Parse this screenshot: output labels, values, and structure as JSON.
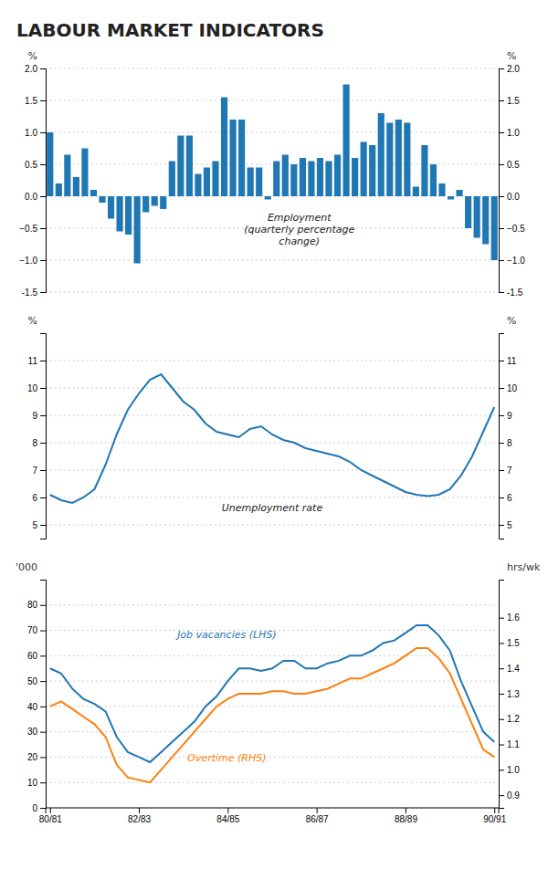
{
  "chart_data": [
    {
      "type": "bar",
      "title": "LABOUR MARKET INDICATORS",
      "categories": [
        null,
        null,
        null,
        null,
        null,
        null,
        null,
        null,
        null,
        null,
        null,
        null,
        null,
        null,
        null,
        null,
        null,
        null,
        null,
        null,
        null,
        null,
        null,
        null,
        null,
        null,
        null,
        null,
        null,
        null,
        null,
        null,
        null,
        null,
        null,
        null,
        null,
        null,
        null,
        null,
        null,
        null,
        null,
        null,
        null,
        null,
        null,
        null,
        null,
        null,
        null,
        null
      ],
      "values": [
        1.0,
        0.2,
        0.65,
        0.3,
        0.75,
        0.1,
        -0.1,
        -0.35,
        -0.55,
        -0.6,
        -1.05,
        -0.25,
        -0.15,
        -0.2,
        0.55,
        0.95,
        0.95,
        0.35,
        0.45,
        0.55,
        1.55,
        1.2,
        1.2,
        0.45,
        0.45,
        -0.05,
        0.55,
        0.65,
        0.5,
        0.6,
        0.55,
        0.6,
        0.55,
        0.65,
        1.75,
        0.6,
        0.85,
        0.8,
        1.3,
        1.15,
        1.2,
        1.15,
        0.15,
        0.8,
        0.5,
        0.2,
        -0.05,
        0.1,
        -0.5,
        -0.65,
        -0.75,
        -1.0
      ],
      "ylim": [
        -1.5,
        2.0
      ],
      "yticks": [
        -1.5,
        {
          "value": -1.0,
          "label": "−1.0"
        },
        {
          "value": -0.5,
          "label": "−0.5"
        },
        {
          "value": 0.0,
          "label": "0.0"
        },
        0.5,
        {
          "value": 1.0,
          "label": "1.0"
        },
        1.5,
        {
          "value": 2.0,
          "label": "2.0"
        }
      ],
      "y2lim": [
        -1.5,
        2.0
      ],
      "y2ticks": [
        -1.5,
        {
          "value": -1.0,
          "label": "−1.0"
        },
        {
          "value": -0.5,
          "label": "−0.5"
        },
        {
          "value": 0.0,
          "label": "0.0"
        },
        0.5,
        {
          "value": 1.0,
          "label": "1.0"
        },
        1.5,
        {
          "value": 2.0,
          "label": "2.0"
        }
      ],
      "ylabel": "%",
      "y2label": "%",
      "grid": true,
      "tick_labels": "y",
      "annotations": [
        "Employment\n(quarterly percentage\nchange)"
      ]
    },
    {
      "type": "line",
      "categories": [
        null,
        null,
        null,
        null,
        null,
        null,
        null,
        null,
        null,
        null,
        null,
        null,
        null,
        null,
        null,
        null,
        null,
        null,
        null,
        null,
        null,
        null,
        null,
        null,
        null,
        null,
        null,
        null,
        null,
        null,
        null,
        null,
        null,
        null,
        null,
        null,
        null,
        null,
        null,
        null,
        null
      ],
      "values": [
        6.1,
        5.9,
        5.8,
        6.0,
        6.3,
        7.2,
        8.3,
        9.2,
        9.8,
        10.3,
        10.5,
        10.0,
        9.5,
        9.2,
        8.7,
        8.4,
        8.3,
        8.2,
        8.5,
        8.6,
        8.3,
        8.1,
        8.0,
        7.8,
        7.7,
        7.6,
        7.5,
        7.3,
        7.0,
        6.8,
        6.6,
        6.4,
        6.2,
        6.1,
        6.05,
        6.1,
        6.3,
        6.8,
        7.5,
        8.4,
        9.3
      ],
      "ylim": [
        4.5,
        12.0
      ],
      "yticks": [
        5,
        6,
        7,
        8,
        9,
        10,
        11
      ],
      "y2lim": [
        4.5,
        12.0
      ],
      "y2ticks": [
        5,
        6,
        7,
        8,
        9,
        10,
        11
      ],
      "ylabel": "%",
      "y2label": "%",
      "grid": true,
      "tick_labels": "y",
      "annotations": [
        "Unemployment rate"
      ]
    },
    {
      "type": "line",
      "categories": [
        "80/81",
        null,
        null,
        null,
        null,
        null,
        null,
        null,
        "82/83",
        null,
        null,
        null,
        null,
        null,
        null,
        null,
        "84/85",
        null,
        null,
        null,
        null,
        null,
        null,
        null,
        "86/87",
        null,
        null,
        null,
        null,
        null,
        null,
        null,
        "88/89",
        null,
        null,
        null,
        null,
        null,
        null,
        null,
        "90/91"
      ],
      "series": [
        {
          "name": "Job vacancies (LHS)",
          "values": [
            55,
            53,
            47,
            43,
            41,
            38,
            28,
            22,
            20,
            18,
            22,
            26,
            30,
            34,
            40,
            44,
            50,
            55,
            55,
            54,
            55,
            58,
            58,
            55,
            55,
            57,
            58,
            60,
            60,
            62,
            65,
            66,
            69,
            72,
            72,
            68,
            62,
            50,
            40,
            30,
            26
          ]
        },
        {
          "name": "Overtime (RHS)",
          "axis": "y2",
          "values": [
            1.25,
            1.27,
            1.24,
            1.21,
            1.18,
            1.13,
            1.02,
            0.97,
            0.96,
            0.95,
            1.0,
            1.05,
            1.1,
            1.15,
            1.2,
            1.25,
            1.28,
            1.3,
            1.3,
            1.3,
            1.31,
            1.31,
            1.3,
            1.3,
            1.31,
            1.32,
            1.34,
            1.36,
            1.36,
            1.38,
            1.4,
            1.42,
            1.45,
            1.48,
            1.48,
            1.44,
            1.38,
            1.28,
            1.18,
            1.08,
            1.05
          ]
        }
      ],
      "ylim": [
        0,
        90
      ],
      "yticks": [
        0,
        10,
        20,
        30,
        40,
        50,
        60,
        70,
        80
      ],
      "y2lim": [
        0.85,
        1.75
      ],
      "y2ticks": [
        0.9,
        {
          "value": 1.0,
          "label": "1.0"
        },
        1.1,
        1.2,
        1.3,
        1.4,
        1.5,
        1.6
      ],
      "ylabel": "'000",
      "y2label": "hrs/wk",
      "grid": true
    }
  ]
}
